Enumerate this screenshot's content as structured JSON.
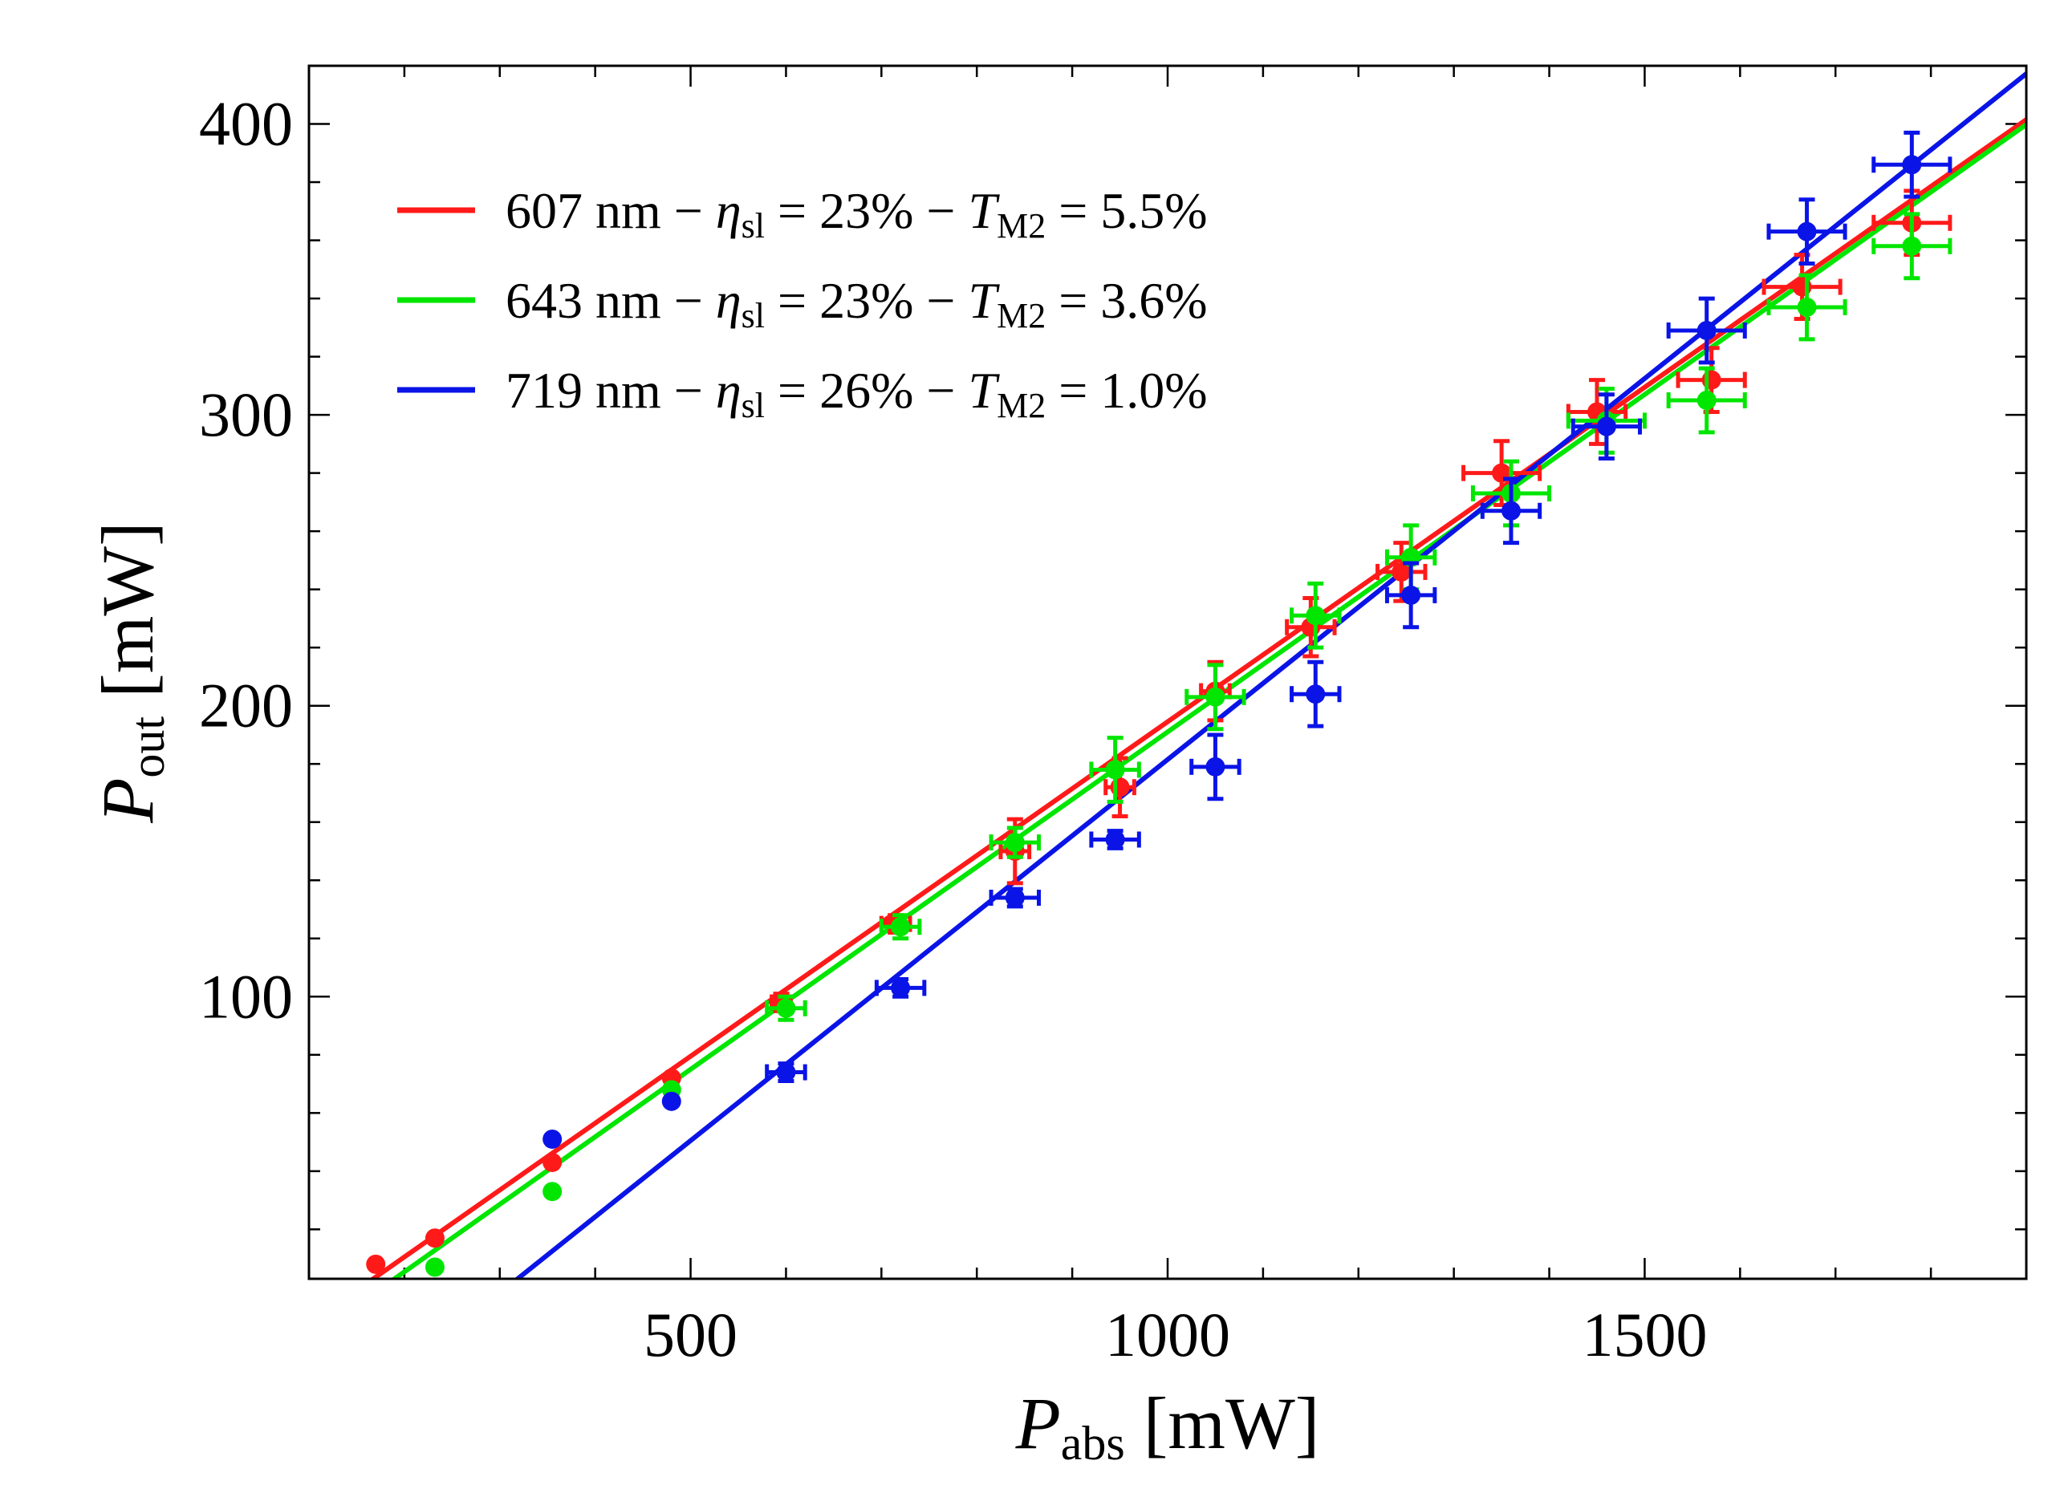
{
  "chart_data": {
    "type": "scatter",
    "title": "",
    "xlabel": {
      "main": "P",
      "sub": "abs",
      "unit": "[mW]"
    },
    "ylabel": {
      "main": "P",
      "sub": "out",
      "unit": "[mW]"
    },
    "xlim": [
      100,
      1900
    ],
    "ylim": [
      3,
      420
    ],
    "x_major_ticks": [
      500,
      1000,
      1500
    ],
    "x_tick_labels": [
      "500",
      "1000",
      "1500"
    ],
    "x_minor_step": 100,
    "y_major_ticks": [
      100,
      200,
      300,
      400
    ],
    "y_tick_labels": [
      "100",
      "200",
      "300",
      "400"
    ],
    "y_minor_step": 20,
    "grid": false,
    "legend_position": "top-left",
    "series": [
      {
        "name": "607 nm",
        "legend": {
          "wavelength": "607 nm",
          "dash1": " − ",
          "eta_sym": "η",
          "eta_sub": "sl",
          "eta_val": " = 23%",
          "dash2": " − ",
          "t_sym": "T",
          "t_sub": "M2",
          "t_val": " = 5.5%"
        },
        "color": "#ff1a1a",
        "fit": {
          "slope": 0.23,
          "intercept": -35.5
        },
        "points": [
          [
            170,
            8,
            0,
            0
          ],
          [
            232,
            17,
            0,
            0
          ],
          [
            355,
            43,
            0,
            0
          ],
          [
            480,
            72,
            0,
            0
          ],
          [
            595,
            98,
            10,
            3
          ],
          [
            715,
            125,
            15,
            3
          ],
          [
            840,
            150,
            15,
            11
          ],
          [
            950,
            172,
            15,
            10
          ],
          [
            1050,
            205,
            15,
            10
          ],
          [
            1150,
            227,
            25,
            10
          ],
          [
            1245,
            246,
            25,
            10
          ],
          [
            1350,
            280,
            40,
            11
          ],
          [
            1450,
            301,
            30,
            11
          ],
          [
            1570,
            312,
            35,
            11
          ],
          [
            1665,
            344,
            40,
            11
          ],
          [
            1780,
            366,
            40,
            11
          ]
        ]
      },
      {
        "name": "643 nm",
        "legend": {
          "wavelength": "643 nm",
          "dash1": " − ",
          "eta_sym": "η",
          "eta_sub": "sl",
          "eta_val": " = 23%",
          "dash2": " − ",
          "t_sym": "T",
          "t_sub": "M2",
          "t_val": " = 3.6%"
        },
        "color": "#00e600",
        "fit": {
          "slope": 0.232,
          "intercept": -41
        },
        "points": [
          [
            232,
            7,
            0,
            0
          ],
          [
            355,
            33,
            0,
            0
          ],
          [
            480,
            68,
            0,
            0
          ],
          [
            600,
            96,
            20,
            4
          ],
          [
            720,
            124,
            20,
            4
          ],
          [
            840,
            153,
            25,
            5
          ],
          [
            945,
            178,
            25,
            11
          ],
          [
            1050,
            203,
            30,
            11
          ],
          [
            1155,
            231,
            25,
            11
          ],
          [
            1255,
            251,
            25,
            11
          ],
          [
            1360,
            273,
            40,
            11
          ],
          [
            1460,
            298,
            40,
            11
          ],
          [
            1565,
            305,
            40,
            11
          ],
          [
            1670,
            337,
            40,
            11
          ],
          [
            1780,
            358,
            40,
            11
          ]
        ]
      },
      {
        "name": "719 nm",
        "legend": {
          "wavelength": "719 nm",
          "dash1": " − ",
          "eta_sym": "η",
          "eta_sub": "sl",
          "eta_val": " = 26%",
          "dash2": " − ",
          "t_sym": "T",
          "t_sub": "M2",
          "t_val": " = 1.0%"
        },
        "color": "#0a14e6",
        "fit": {
          "slope": 0.262,
          "intercept": -80.5
        },
        "points": [
          [
            355,
            51,
            0,
            0
          ],
          [
            480,
            64,
            0,
            0
          ],
          [
            600,
            74,
            20,
            3
          ],
          [
            720,
            103,
            25,
            3
          ],
          [
            840,
            134,
            25,
            3
          ],
          [
            945,
            154,
            25,
            3
          ],
          [
            1050,
            179,
            25,
            11
          ],
          [
            1155,
            204,
            25,
            11
          ],
          [
            1255,
            238,
            25,
            11
          ],
          [
            1360,
            267,
            30,
            11
          ],
          [
            1460,
            296,
            35,
            11
          ],
          [
            1565,
            329,
            40,
            11
          ],
          [
            1670,
            363,
            40,
            11
          ],
          [
            1780,
            386,
            40,
            11
          ]
        ]
      }
    ]
  }
}
